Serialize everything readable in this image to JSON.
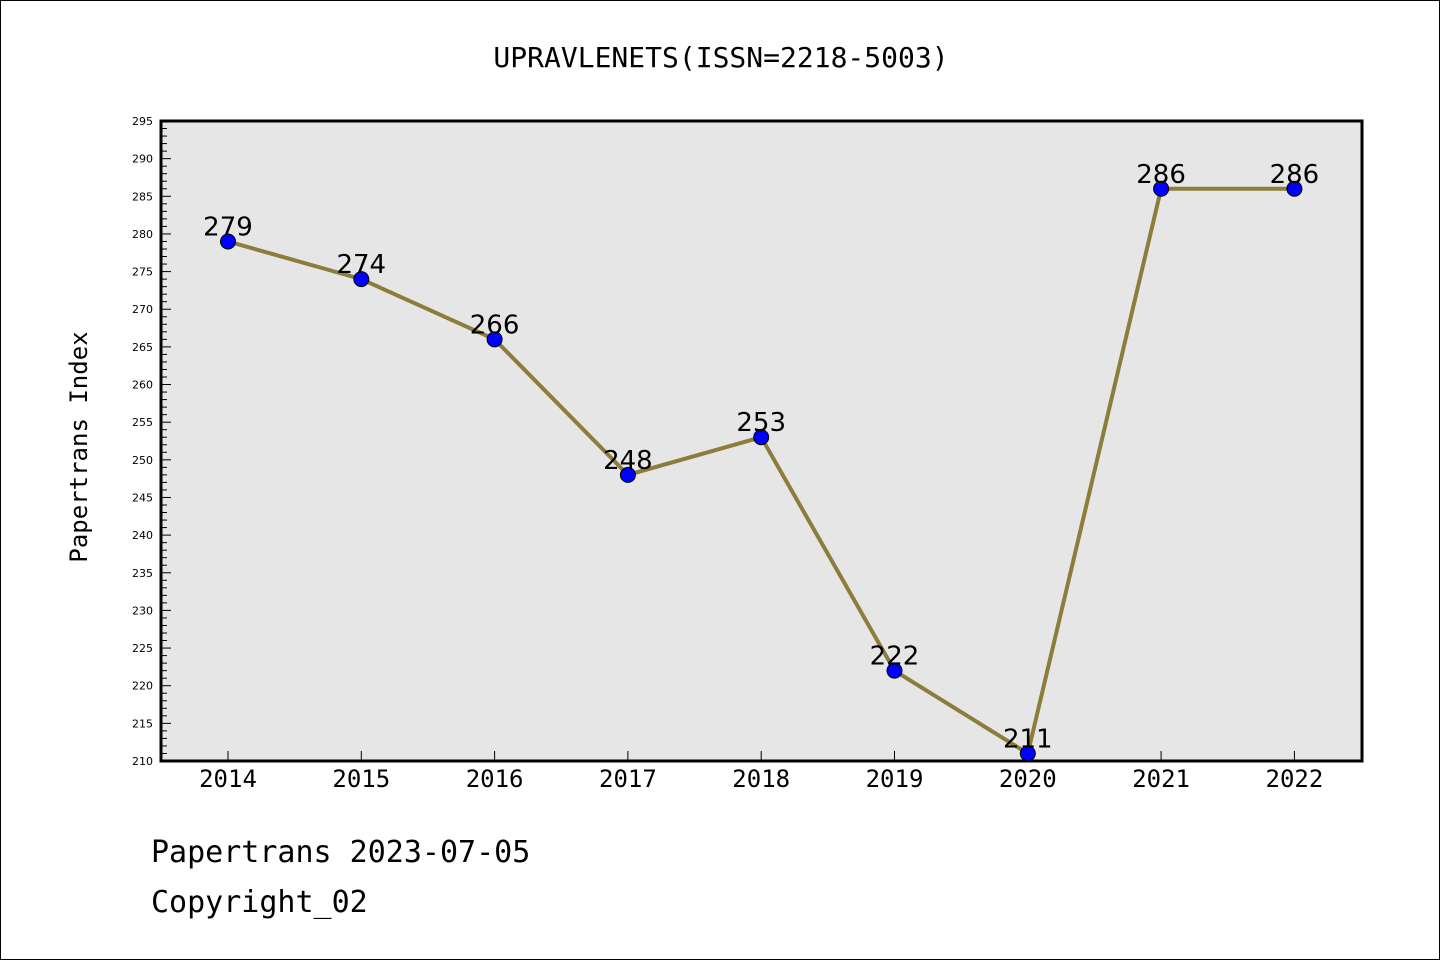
{
  "chart_data": {
    "type": "line",
    "title": "UPRAVLENETS(ISSN=2218-5003)",
    "xlabel": "",
    "ylabel": "Papertrans Index",
    "categories": [
      "2014",
      "2015",
      "2016",
      "2017",
      "2018",
      "2019",
      "2020",
      "2021",
      "2022"
    ],
    "series": [
      {
        "values": [
          279,
          274,
          266,
          248,
          253,
          222,
          211,
          286,
          286
        ]
      }
    ],
    "ylim": [
      210,
      295
    ],
    "yticks": [
      210,
      215,
      220,
      225,
      230,
      235,
      240,
      245,
      250,
      255,
      260,
      265,
      270,
      275,
      280,
      285,
      290,
      295
    ],
    "grid": false,
    "data_labels": true,
    "colors": {
      "line": "#8b7d3a",
      "marker": "#0000ff",
      "plot_background": "#e6e6e6",
      "axis": "#000000"
    }
  },
  "footer": {
    "source": "Papertrans 2023-07-05",
    "copyright": "Copyright_02"
  }
}
